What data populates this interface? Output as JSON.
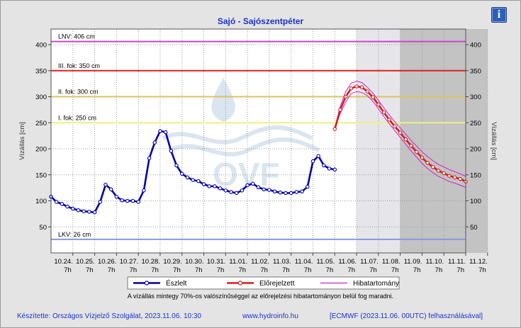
{
  "title": "Sajó - Sajószentpéter",
  "info_button": {
    "label": "i",
    "icon": "info-icon"
  },
  "note": "A vízállás mintegy 70%-os valószínűséggel az előrejelzési hibatartományon belül fog maradni.",
  "footer": {
    "author": "Készítette: Országos Vízjelző Szolgálat, 2023.11.06. 10:30",
    "url": "www.hydroinfo.hu",
    "model": "[ECMWF (2023.11.06. 00UTC) felhasználásával]"
  },
  "watermark": {
    "text": "OVF",
    "icon": "ovf-logo-icon"
  },
  "chart_data": {
    "type": "line",
    "title": "Sajó - Sajószentpéter",
    "ylabel_left": "Vízállás [cm]",
    "ylabel_right": "Vízállás [cm]",
    "ylim": [
      0,
      430
    ],
    "yticks": [
      50,
      100,
      150,
      200,
      250,
      300,
      350,
      400
    ],
    "xlim": [
      "10.23. 7h",
      "11.12. 7h"
    ],
    "xticks": [
      {
        "date": "10.24.",
        "hour": "7h"
      },
      {
        "date": "10.25.",
        "hour": "7h"
      },
      {
        "date": "10.26.",
        "hour": "7h"
      },
      {
        "date": "10.27.",
        "hour": "7h"
      },
      {
        "date": "10.28.",
        "hour": "7h"
      },
      {
        "date": "10.29.",
        "hour": "7h"
      },
      {
        "date": "10.30.",
        "hour": "7h"
      },
      {
        "date": "10.31.",
        "hour": "7h"
      },
      {
        "date": "11.01.",
        "hour": "7h"
      },
      {
        "date": "11.02.",
        "hour": "7h"
      },
      {
        "date": "11.03.",
        "hour": "7h"
      },
      {
        "date": "11.04.",
        "hour": "7h"
      },
      {
        "date": "11.05.",
        "hour": "7h"
      },
      {
        "date": "11.06.",
        "hour": "7h"
      },
      {
        "date": "11.07.",
        "hour": "7h"
      },
      {
        "date": "11.08.",
        "hour": "7h"
      },
      {
        "date": "11.09.",
        "hour": "7h"
      },
      {
        "date": "11.10.",
        "hour": "7h"
      },
      {
        "date": "11.11.",
        "hour": "7h"
      },
      {
        "date": "11.12.",
        "hour": "7h"
      }
    ],
    "grid": true,
    "shaded_periods": [
      {
        "from": "11.06. 7h",
        "to": "11.08. 7h",
        "color": "#e6e6ea"
      },
      {
        "from": "11.08. 7h",
        "to": "11.12. 7h",
        "color": "#c3c3c3"
      }
    ],
    "reference_lines": [
      {
        "label": "LNV: 406 cm",
        "value": 406,
        "color": "#cc44cc"
      },
      {
        "label": "III. fok: 350 cm",
        "value": 350,
        "color": "#e02020"
      },
      {
        "label": "II. fok: 300 cm",
        "value": 300,
        "color": "#e0c060"
      },
      {
        "label": "I. fok: 250 cm",
        "value": 250,
        "color": "#f0f080"
      },
      {
        "label": "LKV: 26 cm",
        "value": 26,
        "color": "#8899dd"
      }
    ],
    "series": [
      {
        "name": "Észlelt",
        "color": "#0000aa",
        "x_days": [
          0,
          0.25,
          0.5,
          0.75,
          1,
          1.25,
          1.5,
          1.75,
          2,
          2.25,
          2.5,
          2.75,
          3,
          3.25,
          3.5,
          3.75,
          4,
          4.25,
          4.5,
          4.75,
          5,
          5.25,
          5.5,
          5.75,
          6,
          6.25,
          6.5,
          6.75,
          7,
          7.25,
          7.5,
          7.75,
          8,
          8.25,
          8.5,
          8.75,
          9,
          9.25,
          9.5,
          9.75,
          10,
          10.25,
          10.5,
          10.75,
          11,
          11.25,
          11.5,
          11.75,
          12,
          12.25,
          12.5,
          12.75,
          13
        ],
        "y": [
          108,
          98,
          94,
          89,
          85,
          82,
          80,
          79,
          78,
          98,
          131,
          122,
          108,
          101,
          100,
          100,
          98,
          120,
          182,
          212,
          234,
          232,
          196,
          168,
          152,
          145,
          140,
          138,
          132,
          128,
          128,
          124,
          120,
          117,
          115,
          120,
          130,
          133,
          126,
          122,
          121,
          118,
          116,
          115,
          115,
          117,
          118,
          127,
          176,
          186,
          168,
          162,
          160
        ]
      },
      {
        "name": "Előrejelzett",
        "color": "#d41e1e",
        "x_days": [
          13,
          13.25,
          13.5,
          13.75,
          14,
          14.25,
          14.5,
          14.75,
          15,
          15.25,
          15.5,
          15.75,
          16,
          16.25,
          16.5,
          16.75,
          17,
          17.25,
          17.5,
          17.75,
          18,
          18.25,
          18.5,
          18.75,
          19
        ],
        "y": [
          238,
          275,
          300,
          316,
          320,
          318,
          310,
          299,
          285,
          270,
          256,
          243,
          231,
          218,
          206,
          194,
          183,
          173,
          165,
          158,
          153,
          148,
          145,
          142,
          137
        ]
      },
      {
        "name": "Hibatartomány",
        "color": "#cc22cc",
        "upper": [
          238,
          282,
          310,
          326,
          330,
          327,
          318,
          307,
          293,
          279,
          265,
          252,
          240,
          228,
          216,
          205,
          194,
          185,
          177,
          170,
          165,
          160,
          156,
          152,
          147
        ],
        "lower": [
          238,
          268,
          290,
          306,
          310,
          308,
          302,
          291,
          277,
          262,
          248,
          235,
          222,
          209,
          196,
          184,
          172,
          162,
          154,
          147,
          142,
          137,
          134,
          130,
          126
        ]
      }
    ],
    "legend": {
      "placement": "bottom",
      "entries": [
        {
          "label": "Észlelt",
          "color": "#0000aa",
          "marker": true
        },
        {
          "label": "Előrejelzett",
          "color": "#d41e1e",
          "marker": true
        },
        {
          "label": "Hibatartomány",
          "color": "#cc22cc",
          "marker": false
        }
      ]
    }
  }
}
